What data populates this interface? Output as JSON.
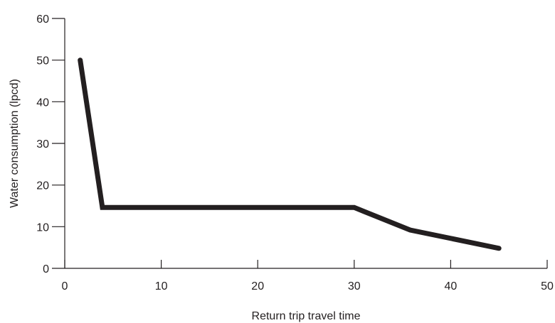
{
  "chart_data": {
    "type": "line",
    "title": "",
    "xlabel": "Return trip travel time",
    "ylabel": "Water consumption (lpcd)",
    "xlim": [
      0,
      50
    ],
    "ylim": [
      0,
      60
    ],
    "xticks": [
      "0",
      "10",
      "20",
      "30",
      "40",
      "50"
    ],
    "yticks": [
      "0",
      "10",
      "20",
      "30",
      "40",
      "50",
      "60"
    ],
    "grid": false,
    "legend": "none",
    "series": [
      {
        "x": [
          1.6,
          3.9,
          30,
          35.8,
          45
        ],
        "y": [
          50,
          14.6,
          14.6,
          9.2,
          4.8
        ],
        "color": "#231f20"
      }
    ]
  }
}
